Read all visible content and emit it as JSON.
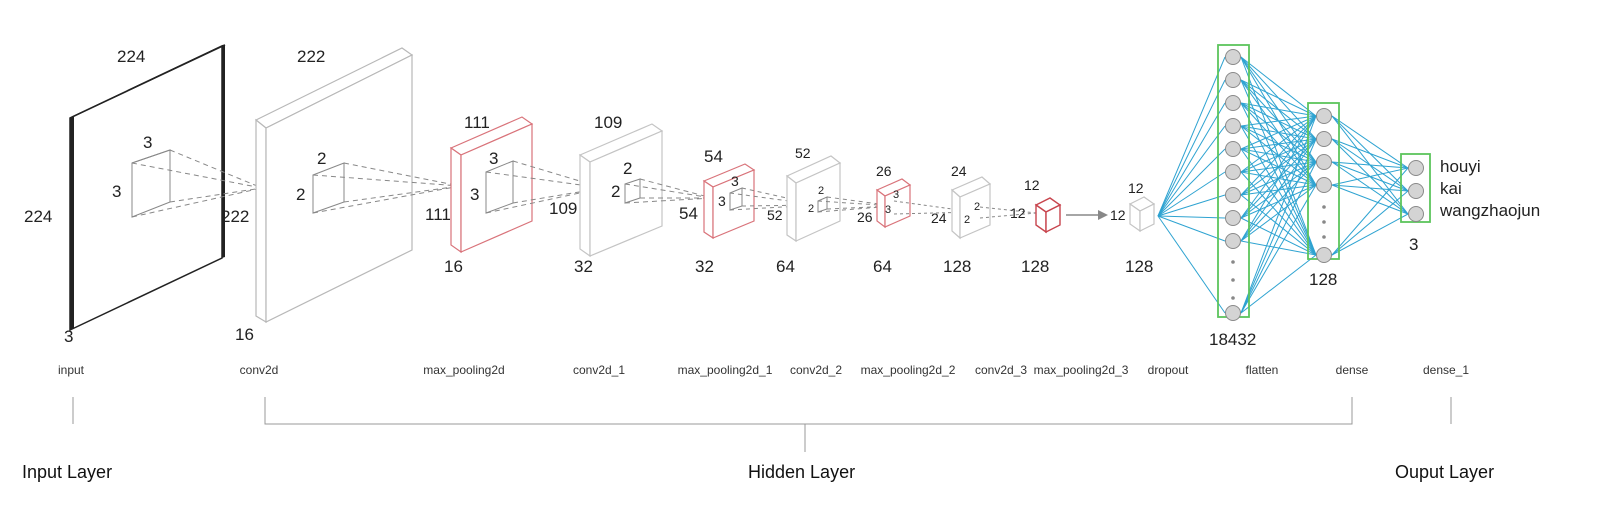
{
  "layers": {
    "input": {
      "name": "input",
      "top": "224",
      "side": "224",
      "depth": "3",
      "kernel": "3",
      "kernel_side": "3"
    },
    "conv2d": {
      "name": "conv2d",
      "top": "222",
      "side": "222",
      "depth": "16",
      "kernel": "2",
      "kernel_side": "2"
    },
    "max_pooling2d": {
      "name": "max_pooling2d",
      "top": "111",
      "side": "111",
      "depth": "16",
      "kernel": "3",
      "kernel_side": "3"
    },
    "conv2d_1": {
      "name": "conv2d_1",
      "top": "109",
      "side": "109",
      "depth": "32",
      "kernel": "2",
      "kernel_side": "2"
    },
    "max_pooling2d_1": {
      "name": "max_pooling2d_1",
      "top": "54",
      "side": "54",
      "depth": "32",
      "kernel": "3",
      "kernel_side": "3"
    },
    "conv2d_2": {
      "name": "conv2d_2",
      "top": "52",
      "side": "52",
      "depth": "64",
      "kernel": "2",
      "kernel_side": "2"
    },
    "max_pooling2d_2": {
      "name": "max_pooling2d_2",
      "top": "26",
      "side": "26",
      "depth": "64",
      "kernel": "3",
      "kernel_side": "3"
    },
    "conv2d_3": {
      "name": "conv2d_3",
      "top": "24",
      "side": "24",
      "depth": "128",
      "kernel": "2",
      "kernel_side": "2"
    },
    "max_pooling2d_3": {
      "name": "max_pooling2d_3",
      "top": "12",
      "side": "12",
      "depth": "128"
    },
    "dropout": {
      "name": "dropout",
      "top": "12",
      "side": "12",
      "depth": "128"
    },
    "flatten": {
      "name": "flatten",
      "units": "18432"
    },
    "dense": {
      "name": "dense",
      "units": "128"
    },
    "dense_1": {
      "name": "dense_1",
      "units": "3"
    }
  },
  "classes": [
    "houyi",
    "kai",
    "wangzhaojun"
  ],
  "groups": {
    "input": "Input Layer",
    "hidden": "Hidden Layer",
    "output": "Ouput Layer"
  },
  "colors": {
    "conv": "#c8c8c8",
    "pool": "#d9737a",
    "input": "#222222",
    "connection": "#2ea3d1",
    "dense_box": "#5cc45c",
    "node_fill": "#d4d4d4",
    "node_stroke": "#8a8a8a"
  }
}
